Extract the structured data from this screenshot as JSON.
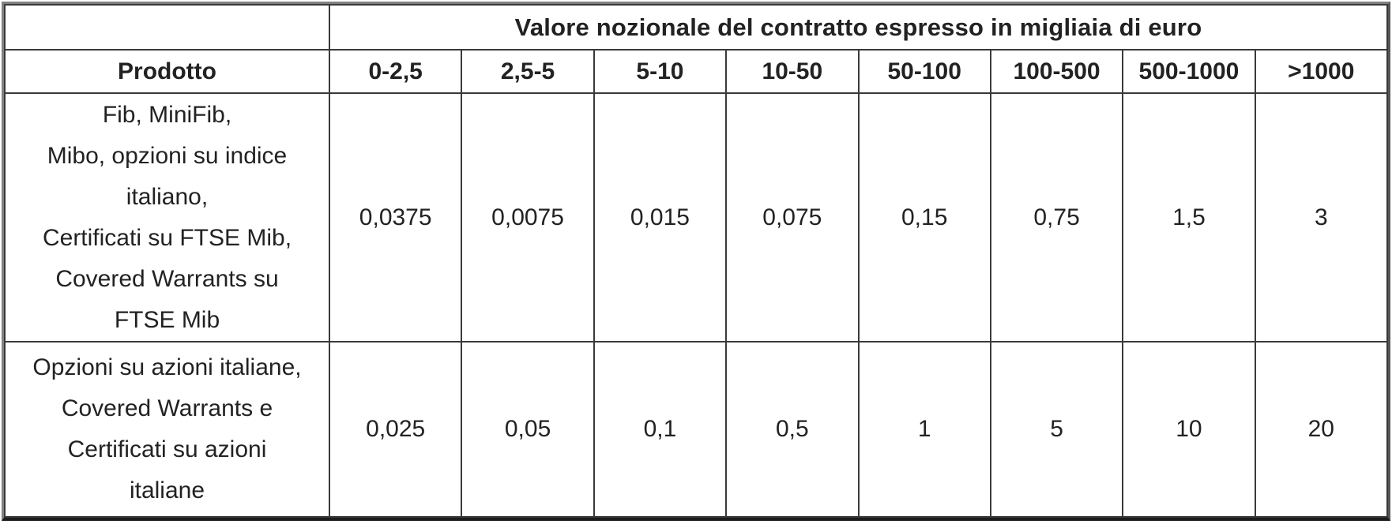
{
  "table": {
    "title": "Valore nozionale del contratto espresso in migliaia di euro",
    "product_header": "Prodotto",
    "columns": [
      "0-2,5",
      "2,5-5",
      "5-10",
      "10-50",
      "50-100",
      "100-500",
      "500-1000",
      ">1000"
    ],
    "rows": [
      {
        "product_lines": [
          "Fib, MiniFib,",
          "Mibo, opzioni su indice",
          "italiano,",
          "Certificati su FTSE Mib,",
          "Covered Warrants su",
          "FTSE Mib"
        ],
        "values": [
          "0,0375",
          "0,0075",
          "0,015",
          "0,075",
          "0,15",
          "0,75",
          "1,5",
          "3"
        ]
      },
      {
        "product_lines": [
          "Opzioni su azioni italiane,",
          "Covered Warrants e",
          "Certificati su azioni",
          "italiane"
        ],
        "values": [
          "0,025",
          "0,05",
          "0,1",
          "0,5",
          "1",
          "5",
          "10",
          "20"
        ]
      }
    ]
  },
  "colors": {
    "text": "#222222",
    "cell_border": "#3a3a3a",
    "frame_top_left": "#818181",
    "frame_bottom": "#1c1c1c",
    "background": "#ffffff"
  }
}
